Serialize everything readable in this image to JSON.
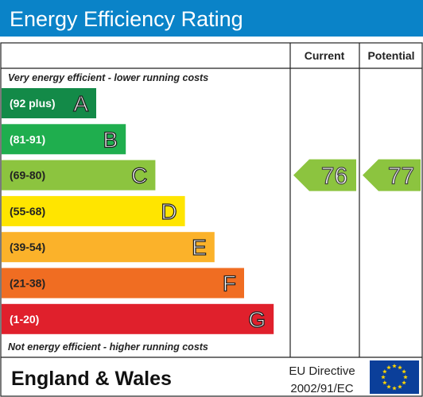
{
  "header": {
    "title": "Energy Efficiency Rating",
    "bg_color": "#0a83c8"
  },
  "chart_data": {
    "type": "bar",
    "columns": {
      "current": "Current",
      "potential": "Potential"
    },
    "top_note": "Very energy efficient - lower running costs",
    "bottom_note": "Not energy efficient - higher running costs",
    "bands": [
      {
        "letter": "A",
        "range": "(92 plus)",
        "min": 92,
        "max": 100,
        "color": "#138a48",
        "range_color": "#ffffff"
      },
      {
        "letter": "B",
        "range": "(81-91)",
        "min": 81,
        "max": 91,
        "color": "#1fae4e",
        "range_color": "#ffffff"
      },
      {
        "letter": "C",
        "range": "(69-80)",
        "min": 69,
        "max": 80,
        "color": "#8cc43f",
        "range_color": "#222222"
      },
      {
        "letter": "D",
        "range": "(55-68)",
        "min": 55,
        "max": 68,
        "color": "#ffe500",
        "range_color": "#222222"
      },
      {
        "letter": "E",
        "range": "(39-54)",
        "min": 39,
        "max": 54,
        "color": "#fbb22a",
        "range_color": "#222222"
      },
      {
        "letter": "F",
        "range": "(21-38)",
        "min": 21,
        "max": 38,
        "color": "#f06d22",
        "range_color": "#222222"
      },
      {
        "letter": "G",
        "range": "(1-20)",
        "min": 1,
        "max": 20,
        "color": "#e0202c",
        "range_color": "#ffffff"
      }
    ],
    "current": {
      "value": 76,
      "band": "C",
      "color": "#8cc43f"
    },
    "potential": {
      "value": 77,
      "band": "C",
      "color": "#8cc43f"
    }
  },
  "footer": {
    "region": "England & Wales",
    "directive_line1": "EU Directive",
    "directive_line2": "2002/91/EC",
    "flag_color": "#0b3f9a",
    "star_color": "#ffd500"
  }
}
